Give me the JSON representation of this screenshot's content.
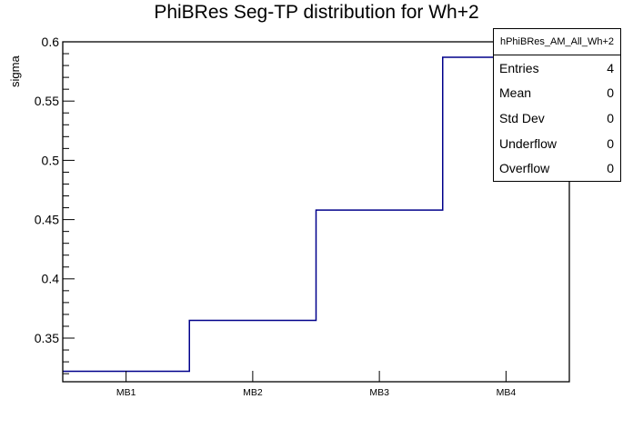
{
  "title": "PhiBRes Seg-TP distribution for Wh+2",
  "y_axis": {
    "label": "sigma"
  },
  "x_axis": {
    "labels": [
      "MB1",
      "MB2",
      "MB3",
      "MB4"
    ]
  },
  "stats_box": {
    "title": "hPhiBRes_AM_All_Wh+2",
    "rows": [
      {
        "label": "Entries",
        "value": "4"
      },
      {
        "label": "Mean",
        "value": "0"
      },
      {
        "label": "Std Dev",
        "value": "0"
      },
      {
        "label": "Underflow",
        "value": "0"
      },
      {
        "label": "Overflow",
        "value": "0"
      }
    ]
  },
  "chart_data": {
    "type": "line",
    "style": "step-histogram",
    "categories": [
      "MB1",
      "MB2",
      "MB3",
      "MB4"
    ],
    "values": [
      0.322,
      0.365,
      0.458,
      0.587
    ],
    "title": "PhiBRes Seg-TP distribution for Wh+2",
    "xlabel": "",
    "ylabel": "sigma",
    "ylim": [
      0.3132,
      0.6
    ],
    "y_major_ticks": [
      0.35,
      0.4,
      0.45,
      0.5,
      0.55,
      0.6
    ],
    "y_tick_labels": [
      "0.35",
      "0.4",
      "0.45",
      "0.5",
      "0.55",
      "0.6"
    ],
    "y_minor_step": 0.01,
    "grid": false,
    "legend": false,
    "line_color": "#00008b",
    "frame_color": "#000000",
    "background_color": "#ffffff"
  }
}
